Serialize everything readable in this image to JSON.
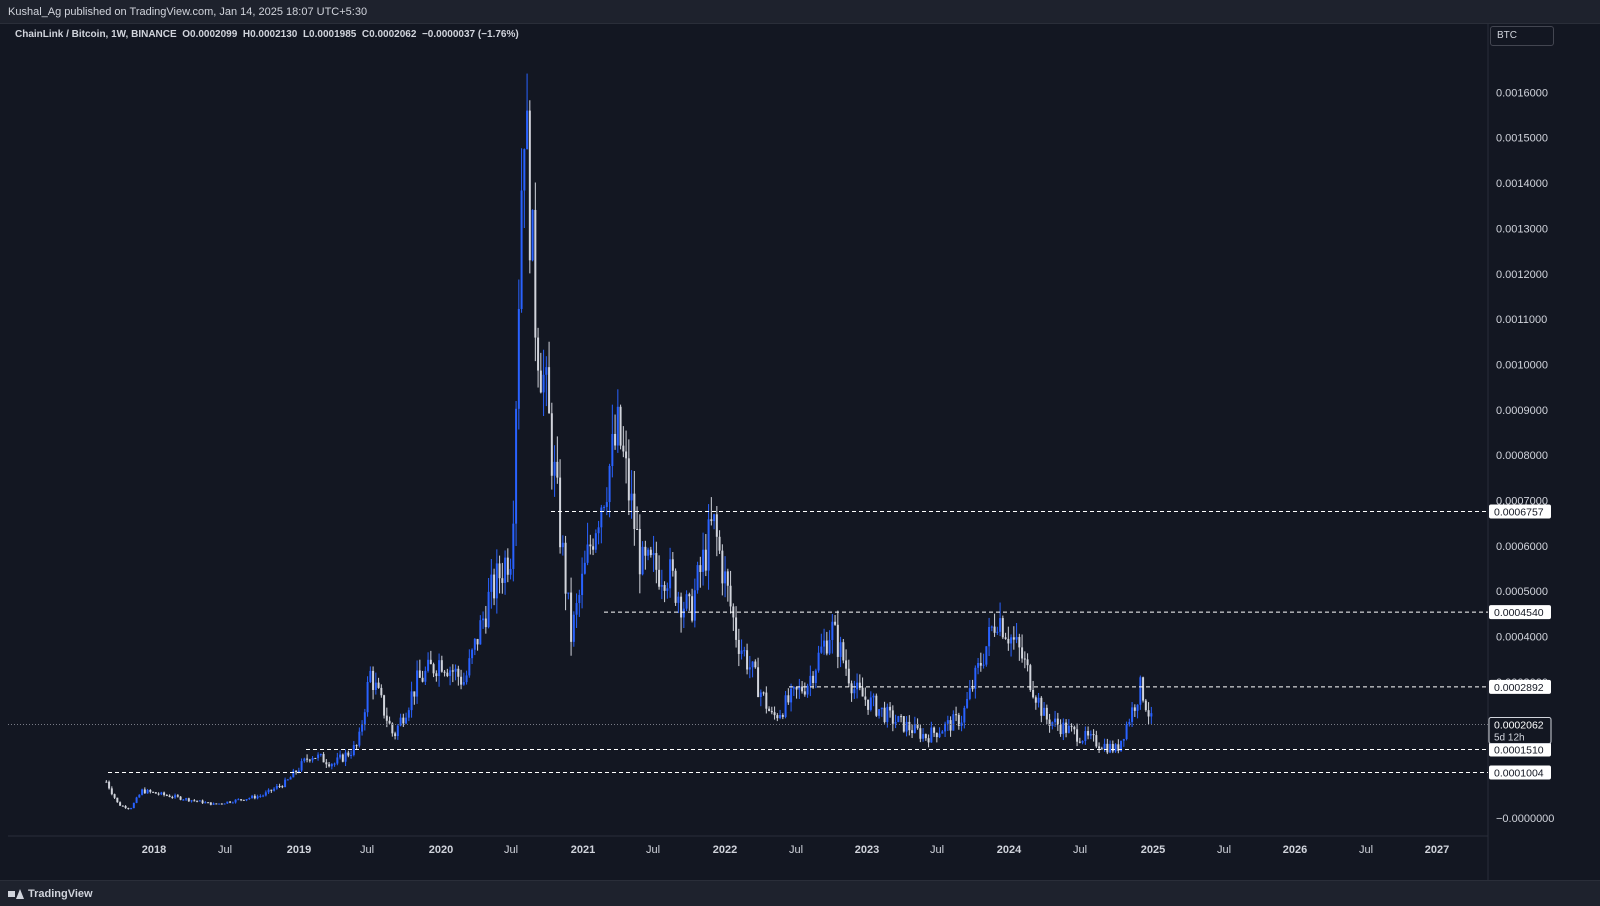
{
  "header": {
    "published_text": "Kushal_Ag published on TradingView.com, Jan 14, 2025 18:07 UTC+5:30"
  },
  "legend": {
    "symbol": "ChainLink / Bitcoin, 1W, BINANCE",
    "open": "O0.0002099",
    "high": "H0.0002130",
    "low": "L0.0001985",
    "close": "C0.0002062",
    "change": "−0.0000037 (−1.76%)"
  },
  "currency_badge": "BTC",
  "footer": {
    "brand": "TradingView"
  },
  "colors": {
    "background": "#131722",
    "up_candle": "#2962ff",
    "down_candle": "#d1d4dc",
    "grid_text": "#d1d4dc",
    "level_line": "#ffffff"
  },
  "chart_data": {
    "type": "candlestick",
    "symbol": "LINK/BTC",
    "interval": "1W",
    "exchange": "BINANCE",
    "ylim": [
      0,
      0.0017
    ],
    "y_ticks": [
      "0.0016000",
      "0.0015000",
      "0.0014000",
      "0.0013000",
      "0.0012000",
      "0.0011000",
      "0.0010000",
      "0.0009000",
      "0.0008000",
      "0.0007000",
      "0.0006000",
      "0.0005000",
      "0.0004000",
      "0.0003000",
      "0.0002000",
      "0.0001000",
      "−0.0000000"
    ],
    "x_ticks": [
      "2018",
      "Jul",
      "2019",
      "Jul",
      "2020",
      "Jul",
      "2021",
      "Jul",
      "2022",
      "Jul",
      "2023",
      "Jul",
      "2024",
      "Jul",
      "2025",
      "Jul",
      "2026",
      "Jul",
      "2027"
    ],
    "horizontal_levels": [
      {
        "label": "0.0006757",
        "value": 0.0006757
      },
      {
        "label": "0.0004540",
        "value": 0.000454
      },
      {
        "label": "0.0002892",
        "value": 0.0002892
      },
      {
        "label": "0.0001510",
        "value": 0.000151
      },
      {
        "label": "0.0001004",
        "value": 0.0001004
      }
    ],
    "last_price": {
      "label": "0.0002062",
      "value": 0.0002062,
      "countdown": "5d 12h"
    },
    "price_path": [
      [
        "2017-09",
        8e-05
      ],
      [
        "2017-10",
        3e-05
      ],
      [
        "2017-11",
        2e-05
      ],
      [
        "2017-12",
        6e-05
      ],
      [
        "2018-02",
        5e-05
      ],
      [
        "2018-04",
        4e-05
      ],
      [
        "2018-06",
        3e-05
      ],
      [
        "2018-08",
        4e-05
      ],
      [
        "2018-10",
        5e-05
      ],
      [
        "2018-12",
        8e-05
      ],
      [
        "2019-02",
        0.00014
      ],
      [
        "2019-04",
        0.00012
      ],
      [
        "2019-06",
        0.00016
      ],
      [
        "2019-07",
        0.00032
      ],
      [
        "2019-09",
        0.00018
      ],
      [
        "2019-11",
        0.0003
      ],
      [
        "2020-01",
        0.00035
      ],
      [
        "2020-03",
        0.0003
      ],
      [
        "2020-05",
        0.00048
      ],
      [
        "2020-07",
        0.0006
      ],
      [
        "2020-08",
        0.0016
      ],
      [
        "2020-09",
        0.0011
      ],
      [
        "2020-10",
        0.0009
      ],
      [
        "2020-12",
        0.0004
      ],
      [
        "2021-02",
        0.00065
      ],
      [
        "2021-04",
        0.00085
      ],
      [
        "2021-06",
        0.00055
      ],
      [
        "2021-08",
        0.00055
      ],
      [
        "2021-10",
        0.00045
      ],
      [
        "2021-12",
        0.00065
      ],
      [
        "2022-02",
        0.0004
      ],
      [
        "2022-05",
        0.00022
      ],
      [
        "2022-08",
        0.0003
      ],
      [
        "2022-10",
        0.00042
      ],
      [
        "2022-12",
        0.00028
      ],
      [
        "2023-03",
        0.00022
      ],
      [
        "2023-06",
        0.00018
      ],
      [
        "2023-09",
        0.00022
      ],
      [
        "2023-12",
        0.00045
      ],
      [
        "2024-02",
        0.00036
      ],
      [
        "2024-04",
        0.00022
      ],
      [
        "2024-07",
        0.00018
      ],
      [
        "2024-10",
        0.00015
      ],
      [
        "2024-12",
        0.00029
      ],
      [
        "2025-01",
        0.0002
      ]
    ]
  }
}
